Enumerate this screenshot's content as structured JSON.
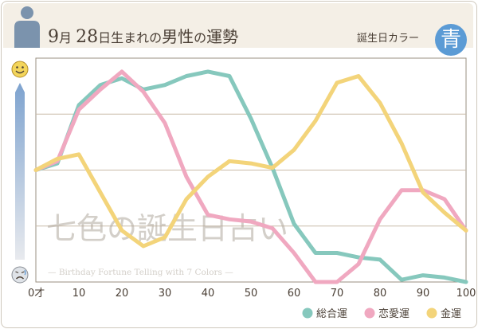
{
  "header": {
    "title_day_num": "9",
    "title_month_kanji": "月",
    "title_date_num": "28",
    "title_mid": "日生まれの",
    "title_male": "男性",
    "title_no": "の",
    "title_fortune": "運勢",
    "color_label": "誕生日カラー",
    "color_badge": "青",
    "color_badge_hex": "#5b9bd5",
    "icon": "person-silhouette-icon"
  },
  "scale": {
    "top_icon": "smile-face-icon",
    "bottom_icon": "sad-face-icon"
  },
  "watermark": {
    "main": "七色の誕生日占い",
    "sub": "— Birthday Fortune Telling with 7 Colors —"
  },
  "chart_data": {
    "type": "line",
    "x": [
      0,
      5,
      10,
      15,
      20,
      25,
      30,
      35,
      40,
      45,
      50,
      55,
      60,
      65,
      70,
      75,
      80,
      85,
      90,
      95,
      100
    ],
    "xlim": [
      0,
      100
    ],
    "ylim": [
      0,
      100
    ],
    "x_ticks": [
      0,
      10,
      20,
      30,
      40,
      50,
      60,
      70,
      80,
      90,
      100
    ],
    "x_tick_labels": [
      "0才",
      "10",
      "20",
      "30",
      "40",
      "50",
      "60",
      "70",
      "80",
      "90",
      "100"
    ],
    "grid": "horizontal",
    "legend_position": "bottom-right",
    "series": [
      {
        "name": "総合運",
        "color": "#86c8bd",
        "values": [
          50,
          53,
          79,
          88,
          91,
          86,
          88,
          92,
          94,
          92,
          73,
          51,
          26,
          13,
          13,
          11,
          10,
          1,
          3,
          2,
          0
        ]
      },
      {
        "name": "恋愛運",
        "color": "#f0a8c0",
        "values": [
          50,
          54,
          77,
          86,
          94,
          85,
          71,
          47,
          30,
          28,
          27,
          24,
          13,
          0,
          0,
          8,
          28,
          41,
          41,
          37,
          23
        ]
      },
      {
        "name": "金運",
        "color": "#f3d47a",
        "values": [
          50,
          55,
          57,
          40,
          23,
          16,
          20,
          37,
          47,
          54,
          53,
          51,
          59,
          72,
          89,
          92,
          80,
          62,
          40,
          31,
          23
        ]
      }
    ]
  }
}
